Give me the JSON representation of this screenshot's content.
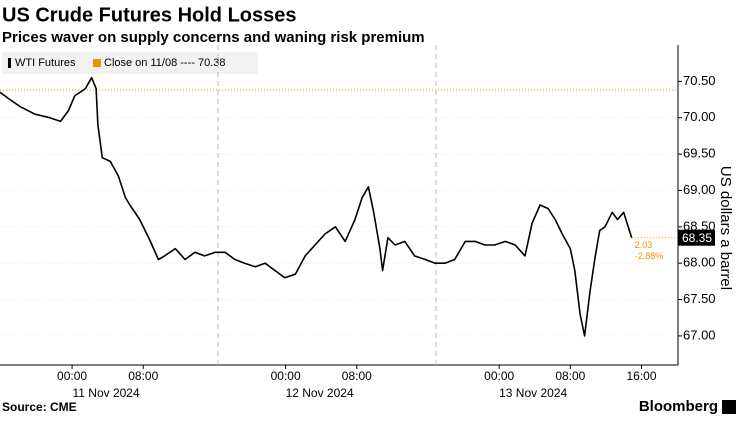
{
  "chart_data": {
    "type": "line",
    "title": "US Crude Futures Hold Losses",
    "subtitle": "Prices waver on supply concerns and waning risk premium",
    "y_label": "US dollars a barrel",
    "source": "Source: CME",
    "brand": "Bloomberg",
    "x": [
      -8.1,
      -7.0,
      -5.8,
      -4.2,
      -2.5,
      -1.3,
      -0.4,
      0.3,
      1.5,
      2.2,
      2.7,
      2.9,
      3.4,
      4.3,
      5.2,
      6.0,
      6.5,
      7.6,
      8.8,
      9.7,
      10.4,
      11.6,
      12.7,
      13.8,
      14.9,
      16.1,
      17.2,
      18.3,
      19.4,
      20.6,
      21.7,
      22.8,
      23.9,
      25.1,
      26.2,
      27.3,
      28.4,
      29.6,
      30.7,
      31.8,
      32.6,
      33.3,
      33.9,
      34.6,
      34.9,
      35.5,
      36.3,
      37.4,
      38.5,
      39.7,
      40.8,
      41.9,
      43.0,
      44.2,
      45.3,
      46.4,
      47.5,
      48.7,
      49.8,
      50.9,
      51.7,
      52.6,
      53.5,
      54.3,
      55.1,
      56.0,
      56.5,
      57.1,
      57.6,
      58.2,
      58.8,
      59.3,
      59.9,
      60.7,
      61.3,
      62.0,
      62.5,
      62.9
    ],
    "series": [
      {
        "name": "WTI Futures",
        "color": "#000000",
        "values": [
          70.35,
          70.25,
          70.15,
          70.05,
          70.0,
          69.95,
          70.1,
          70.3,
          70.4,
          70.55,
          70.4,
          69.9,
          69.45,
          69.4,
          69.2,
          68.9,
          68.8,
          68.6,
          68.3,
          68.05,
          68.1,
          68.2,
          68.05,
          68.15,
          68.1,
          68.15,
          68.15,
          68.05,
          68.0,
          67.95,
          68.0,
          67.9,
          67.8,
          67.85,
          68.1,
          68.25,
          68.4,
          68.5,
          68.3,
          68.6,
          68.9,
          69.05,
          68.7,
          68.2,
          67.9,
          68.35,
          68.25,
          68.3,
          68.1,
          68.05,
          68.0,
          68.0,
          68.05,
          68.3,
          68.3,
          68.25,
          68.25,
          68.3,
          68.25,
          68.1,
          68.55,
          68.8,
          68.75,
          68.6,
          68.4,
          68.2,
          67.9,
          67.3,
          67.0,
          67.6,
          68.1,
          68.45,
          68.5,
          68.7,
          68.6,
          68.7,
          68.5,
          68.35
        ]
      }
    ],
    "reference_line": {
      "name": "Close on 11/08 ---- 70.38",
      "value": 70.38,
      "color": "#f29100"
    },
    "annotations": [
      "2.03",
      "-2.88%"
    ],
    "xlim": [
      -8.1,
      68.1
    ],
    "xticks": [
      {
        "value": 0,
        "label": "00:00"
      },
      {
        "value": 8,
        "label": "08:00"
      },
      {
        "value": 24,
        "label": "00:00"
      },
      {
        "value": 32,
        "label": "08:00"
      },
      {
        "value": 48,
        "label": "00:00"
      },
      {
        "value": 56,
        "label": "08:00"
      },
      {
        "value": 64,
        "label": "16:00"
      }
    ],
    "date_labels": [
      {
        "value": 0,
        "label": "11 Nov 2024"
      },
      {
        "value": 24,
        "label": "12 Nov 2024"
      },
      {
        "value": 48,
        "label": "13 Nov 2024"
      }
    ],
    "session_breaks": [
      16.4,
      40.9
    ],
    "ylim": [
      66.6,
      71.0
    ],
    "yticks": [
      {
        "value": 67,
        "label": "67.00"
      },
      {
        "value": 67.5,
        "label": "67.50"
      },
      {
        "value": 68,
        "label": "68.00"
      },
      {
        "value": 68.5,
        "label": "68.50"
      },
      {
        "value": 69,
        "label": "69.00"
      },
      {
        "value": 69.5,
        "label": "69.50"
      },
      {
        "value": 70,
        "label": "70.00"
      },
      {
        "value": 70.5,
        "label": "70.50"
      }
    ],
    "grid": true
  }
}
